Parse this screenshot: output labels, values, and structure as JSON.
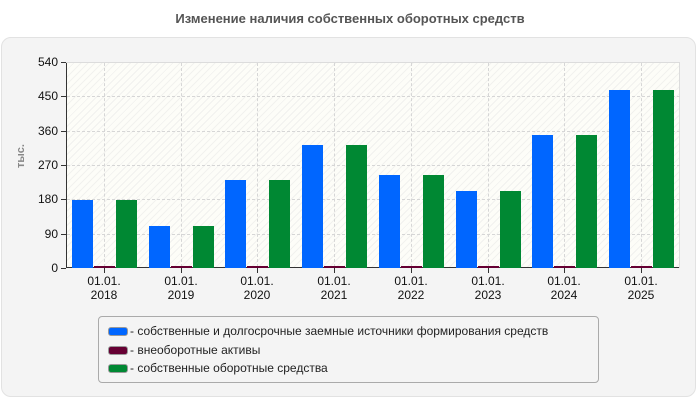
{
  "title": "Изменение наличия собственных оборотных средств",
  "y_axis": {
    "title": "тыс.",
    "ticks": [
      "540",
      "450",
      "360",
      "270",
      "180",
      "90",
      "0"
    ]
  },
  "x_axis": {
    "labels": [
      {
        "line1": "01.01.",
        "line2": "2018"
      },
      {
        "line1": "01.01.",
        "line2": "2019"
      },
      {
        "line1": "01.01.",
        "line2": "2020"
      },
      {
        "line1": "01.01.",
        "line2": "2021"
      },
      {
        "line1": "01.01.",
        "line2": "2022"
      },
      {
        "line1": "01.01.",
        "line2": "2023"
      },
      {
        "line1": "01.01.",
        "line2": "2024"
      },
      {
        "line1": "01.01.",
        "line2": "2025"
      }
    ]
  },
  "legend": {
    "items": [
      {
        "label": "- собственные и долгосрочные заемные источники формирования средств",
        "color": "#0066ff"
      },
      {
        "label": "- внеоборотные активы",
        "color": "#660033"
      },
      {
        "label": "- собственные оборотные средства",
        "color": "#008833"
      }
    ]
  },
  "chart_data": {
    "type": "bar",
    "title": "Изменение наличия собственных оборотных средств",
    "xlabel": "",
    "ylabel": "тыс.",
    "ylim": [
      0,
      540
    ],
    "yticks": [
      0,
      90,
      180,
      270,
      360,
      450,
      540
    ],
    "grid": true,
    "legend_position": "bottom",
    "categories": [
      "01.01.2018",
      "01.01.2019",
      "01.01.2020",
      "01.01.2021",
      "01.01.2022",
      "01.01.2023",
      "01.01.2024",
      "01.01.2025"
    ],
    "series": [
      {
        "name": "собственные и долгосрочные заемные источники формирования средств",
        "color": "#0066ff",
        "values": [
          178,
          110,
          231,
          322,
          244,
          202,
          349,
          467
        ]
      },
      {
        "name": "внеоборотные активы",
        "color": "#660033",
        "values": [
          5,
          5,
          5,
          5,
          5,
          5,
          5,
          5
        ]
      },
      {
        "name": "собственные оборотные средства",
        "color": "#008833",
        "values": [
          178,
          110,
          231,
          322,
          244,
          202,
          349,
          467
        ]
      }
    ]
  }
}
